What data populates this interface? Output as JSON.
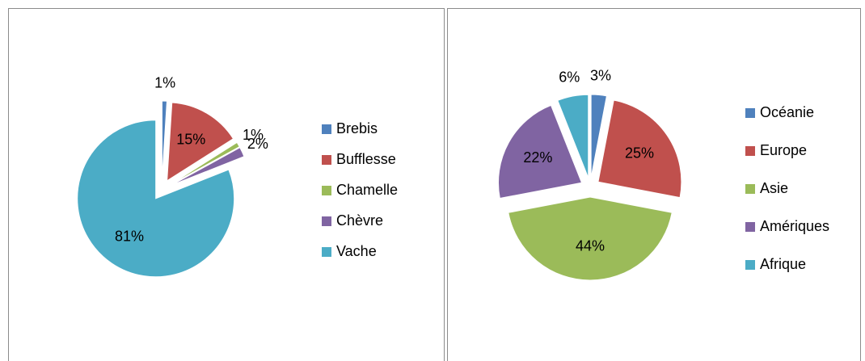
{
  "chart_data": [
    {
      "type": "pie",
      "categories": [
        "Brebis",
        "Bufflesse",
        "Chamelle",
        "Chèvre",
        "Vache"
      ],
      "values": [
        1,
        15,
        1,
        2,
        81
      ],
      "value_labels": [
        "1%",
        "15%",
        "1%",
        "2%",
        "81%"
      ],
      "colors": [
        "#4f81bd",
        "#c0504d",
        "#9bbb59",
        "#8064a2",
        "#4bacc6"
      ],
      "legend": "right"
    },
    {
      "type": "pie",
      "categories": [
        "Océanie",
        "Europe",
        "Asie",
        "Amériques",
        "Afrique"
      ],
      "values": [
        3,
        25,
        44,
        22,
        6
      ],
      "value_labels": [
        "3%",
        "25%",
        "44%",
        "22%",
        "6%"
      ],
      "colors": [
        "#4f81bd",
        "#c0504d",
        "#9bbb59",
        "#8064a2",
        "#4bacc6"
      ],
      "legend": "right"
    }
  ]
}
